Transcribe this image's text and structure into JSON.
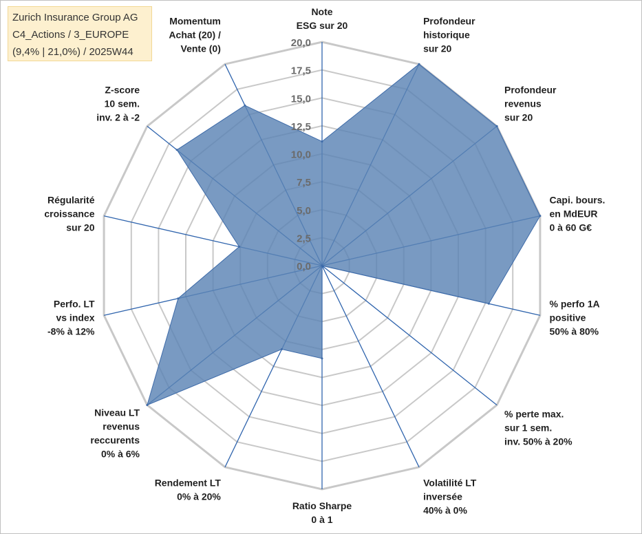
{
  "header": {
    "line1": "Zurich Insurance Group AG",
    "line2": "C4_Actions / 3_EUROPE",
    "line3": "(9,4% | 21,0%) / 2025W44"
  },
  "chart_data": {
    "type": "radar",
    "title": "Zurich Insurance Group AG",
    "rmin": 0,
    "rmax": 20,
    "ticks": [
      0,
      2.5,
      5,
      7.5,
      10,
      12.5,
      15,
      17.5,
      20
    ],
    "tick_labels": [
      "0,0",
      "2,5",
      "5,0",
      "7,5",
      "10,0",
      "12,5",
      "15,0",
      "17,5",
      "20,0"
    ],
    "axes": [
      {
        "label": [
          "Note",
          "ESG sur 20"
        ]
      },
      {
        "label": [
          "Profondeur",
          "historique",
          "sur 20"
        ]
      },
      {
        "label": [
          "Profondeur",
          "revenus",
          "sur 20"
        ]
      },
      {
        "label": [
          "Capi. bours.",
          "en MdEUR",
          "0 à 60 G€"
        ]
      },
      {
        "label": [
          "% perfo 1A",
          "positive",
          "50% à 80%"
        ]
      },
      {
        "label": [
          "% perte max.",
          "sur 1 sem.",
          "inv. 50% à 20%"
        ]
      },
      {
        "label": [
          "Volatilité LT",
          "inversée",
          "40% à 0%"
        ]
      },
      {
        "label": [
          "Ratio Sharpe",
          "0 à 1"
        ]
      },
      {
        "label": [
          "Rendement LT",
          "0% à 20%"
        ]
      },
      {
        "label": [
          "Niveau LT",
          "revenus",
          "reccurents",
          "0% à 6%"
        ]
      },
      {
        "label": [
          "Perfo. LT",
          "vs index",
          "-8% à 12%"
        ]
      },
      {
        "label": [
          "Régularité",
          "croissance",
          "sur 20"
        ]
      },
      {
        "label": [
          "Z-score",
          "10 sem.",
          "inv. 2 à -2"
        ]
      },
      {
        "label": [
          "Momentum",
          "Achat (20) /",
          "Vente (0)"
        ]
      }
    ],
    "series": [
      {
        "name": "Zurich Insurance Group AG",
        "color": "#5b84b5",
        "values": [
          11.1,
          20,
          20,
          20,
          15.3,
          0,
          0,
          8.3,
          8.3,
          20,
          13.2,
          7.6,
          16.6,
          15.9
        ]
      }
    ]
  }
}
